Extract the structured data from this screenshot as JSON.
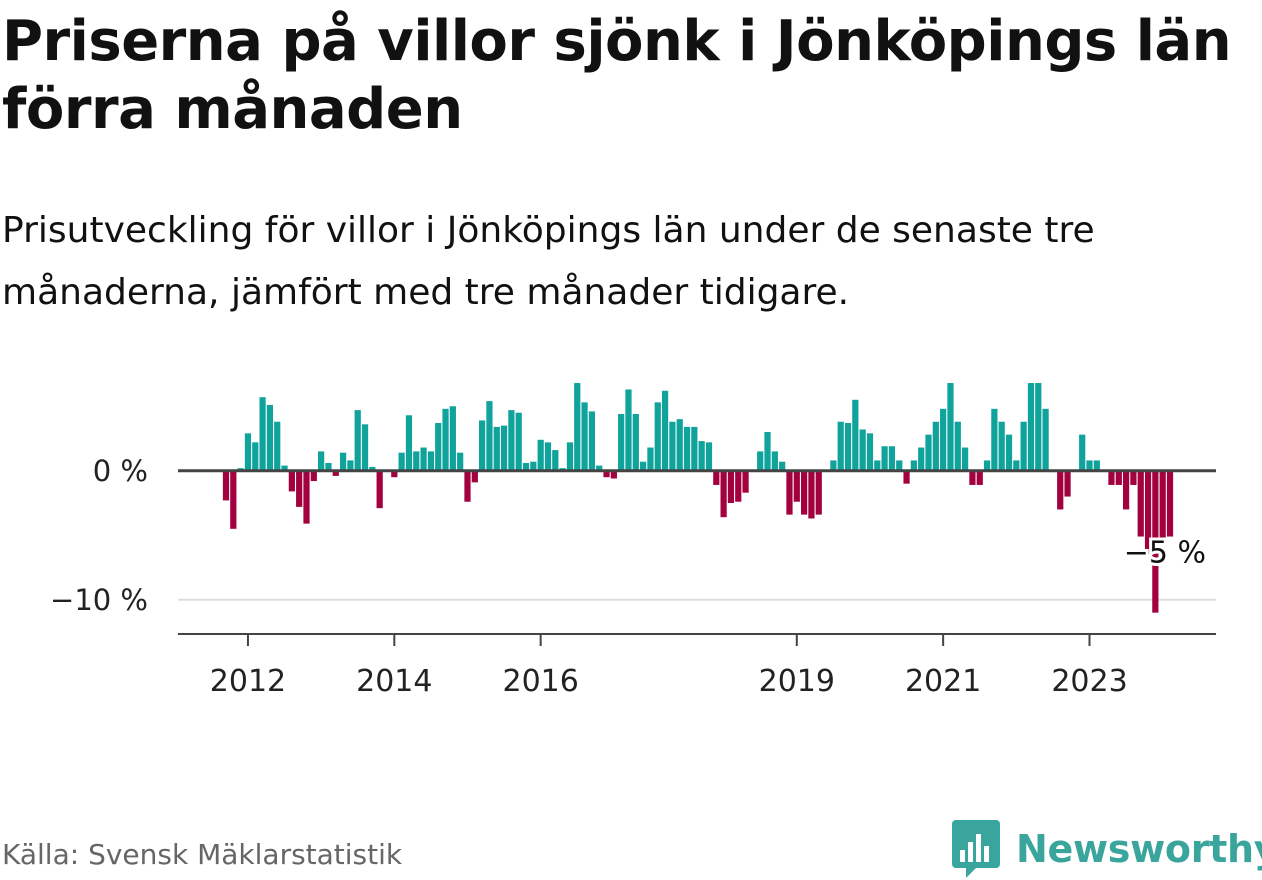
{
  "title": "Priserna på villor sjönk i Jönköpings län förra månaden",
  "subtitle": "Prisutveckling för villor i Jönköpings län under de senaste tre månaderna, jämfört med tre månader tidigare.",
  "source": "Källa: Svensk Mäklarstatistik",
  "brand": "Newsworthy",
  "colors": {
    "positive": "#0fa39c",
    "negative": "#a3003f",
    "axis": "#444444",
    "grid": "#dddddd",
    "brand": "#3aa59c"
  },
  "chart_data": {
    "type": "bar",
    "title": "Prisutveckling för villor i Jönköpings län",
    "xlabel": "",
    "ylabel": "",
    "ylim": [
      -12.5,
      7.5
    ],
    "yticks": [
      {
        "value": 0,
        "label": "0 %"
      },
      {
        "value": -10,
        "label": "−10 %"
      }
    ],
    "xticks": [
      {
        "index": 3,
        "label": "2012"
      },
      {
        "index": 23,
        "label": "2014"
      },
      {
        "index": 43,
        "label": "2016"
      },
      {
        "index": 78,
        "label": "2019"
      },
      {
        "index": 98,
        "label": "2021"
      },
      {
        "index": 118,
        "label": "2023"
      }
    ],
    "series": [
      {
        "name": "Prisutveckling (%)",
        "values": [
          -2.3,
          -4.5,
          0.2,
          2.9,
          2.2,
          5.7,
          5.1,
          3.8,
          0.4,
          -1.6,
          -2.8,
          -4.1,
          -0.8,
          1.5,
          0.6,
          -0.4,
          1.4,
          0.8,
          4.7,
          3.6,
          0.3,
          -2.9,
          0.0,
          -0.5,
          1.4,
          4.3,
          1.5,
          1.8,
          1.5,
          3.7,
          4.8,
          5.0,
          1.4,
          -2.4,
          -0.9,
          3.9,
          5.4,
          3.4,
          3.5,
          4.7,
          4.5,
          0.6,
          0.7,
          2.4,
          2.2,
          1.6,
          0.2,
          2.2,
          6.8,
          5.3,
          4.6,
          0.4,
          -0.5,
          -0.6,
          4.4,
          6.3,
          4.4,
          0.7,
          1.8,
          5.3,
          6.2,
          3.8,
          4.0,
          3.4,
          3.4,
          2.3,
          2.2,
          -1.1,
          -3.6,
          -2.5,
          -2.4,
          -1.7,
          0.0,
          1.5,
          3.0,
          1.5,
          0.7,
          -3.4,
          -2.4,
          -3.4,
          -3.7,
          -3.4,
          0.0,
          0.8,
          3.8,
          3.7,
          5.5,
          3.2,
          2.9,
          0.8,
          1.9,
          1.9,
          0.8,
          -1.0,
          0.8,
          1.8,
          2.8,
          3.8,
          4.8,
          6.8,
          3.8,
          1.8,
          -1.1,
          -1.1,
          0.8,
          4.8,
          3.8,
          2.8,
          0.8,
          3.8,
          6.8,
          6.8,
          4.8,
          -0.1,
          -3.0,
          -2.0,
          0.0,
          2.8,
          0.8,
          0.8,
          -0.1,
          -1.1,
          -1.1,
          -3.0,
          -1.1,
          -5.1,
          -6.5,
          -11.0,
          -5.6,
          -5.1
        ],
        "highlight_label": "−5 %"
      }
    ]
  }
}
